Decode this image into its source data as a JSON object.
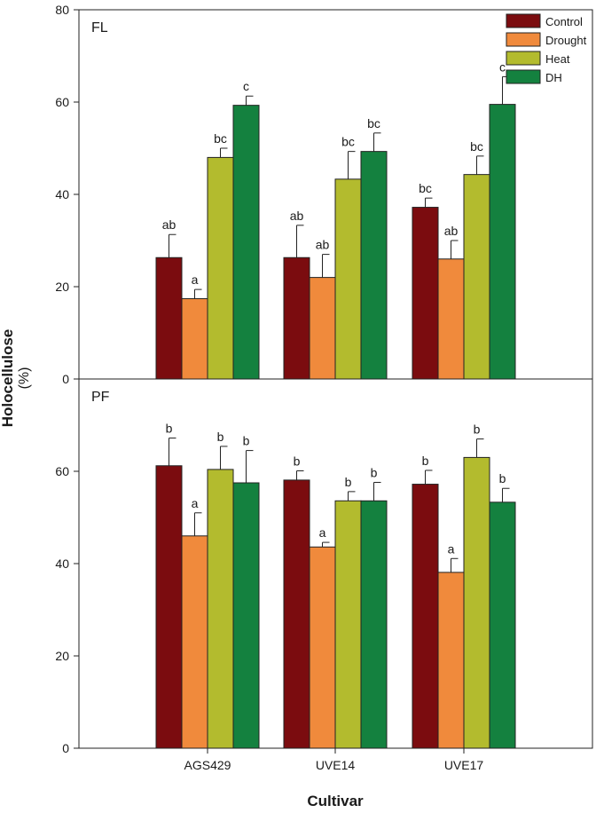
{
  "chart_data": {
    "type": "bar",
    "ylabel": "Holocellulose",
    "ylabel_unit": "(%)",
    "xlabel": "Cultivar",
    "categories": [
      "AGS429",
      "UVE14",
      "UVE17"
    ],
    "legend": {
      "placement": "top-right",
      "entries": [
        {
          "name": "Control",
          "color": "#7b0c0f"
        },
        {
          "name": "Drought",
          "color": "#f08a3c"
        },
        {
          "name": "Heat",
          "color": "#b3bb2e"
        },
        {
          "name": "DH",
          "color": "#14813f"
        }
      ]
    },
    "panels": [
      {
        "label": "FL",
        "ylim": [
          0,
          80
        ],
        "yticks": [
          "0",
          "20",
          "40",
          "60",
          "80"
        ],
        "series": [
          {
            "name": "Control",
            "values": [
              26.3,
              26.3,
              37.2
            ],
            "errors": [
              5.0,
              7.0,
              2.0
            ],
            "letters": [
              "ab",
              "ab",
              "bc"
            ]
          },
          {
            "name": "Drought",
            "values": [
              17.4,
              22.0,
              26.0
            ],
            "errors": [
              2.0,
              5.0,
              4.0
            ],
            "letters": [
              "a",
              "ab",
              "ab"
            ]
          },
          {
            "name": "Heat",
            "values": [
              48.0,
              43.3,
              44.3
            ],
            "errors": [
              2.0,
              6.0,
              4.0
            ],
            "letters": [
              "bc",
              "bc",
              "bc"
            ]
          },
          {
            "name": "DH",
            "values": [
              59.3,
              49.3,
              59.5
            ],
            "errors": [
              2.0,
              4.0,
              6.0
            ],
            "letters": [
              "c",
              "bc",
              "c"
            ]
          }
        ]
      },
      {
        "label": "PF",
        "ylim": [
          0,
          80
        ],
        "yticks": [
          "0",
          "20",
          "40",
          "60"
        ],
        "series": [
          {
            "name": "Control",
            "values": [
              61.2,
              58.1,
              57.2
            ],
            "errors": [
              6.0,
              2.0,
              3.0
            ],
            "letters": [
              "b",
              "b",
              "b"
            ]
          },
          {
            "name": "Drought",
            "values": [
              46.0,
              43.6,
              38.1
            ],
            "errors": [
              5.0,
              1.0,
              3.0
            ],
            "letters": [
              "a",
              "a",
              "a"
            ]
          },
          {
            "name": "Heat",
            "values": [
              60.4,
              53.6,
              63.0
            ],
            "errors": [
              5.0,
              2.0,
              4.0
            ],
            "letters": [
              "b",
              "b",
              "b"
            ]
          },
          {
            "name": "DH",
            "values": [
              57.5,
              53.6,
              53.3
            ],
            "errors": [
              7.0,
              4.0,
              3.0
            ],
            "letters": [
              "b",
              "b",
              "b"
            ]
          }
        ]
      }
    ]
  }
}
